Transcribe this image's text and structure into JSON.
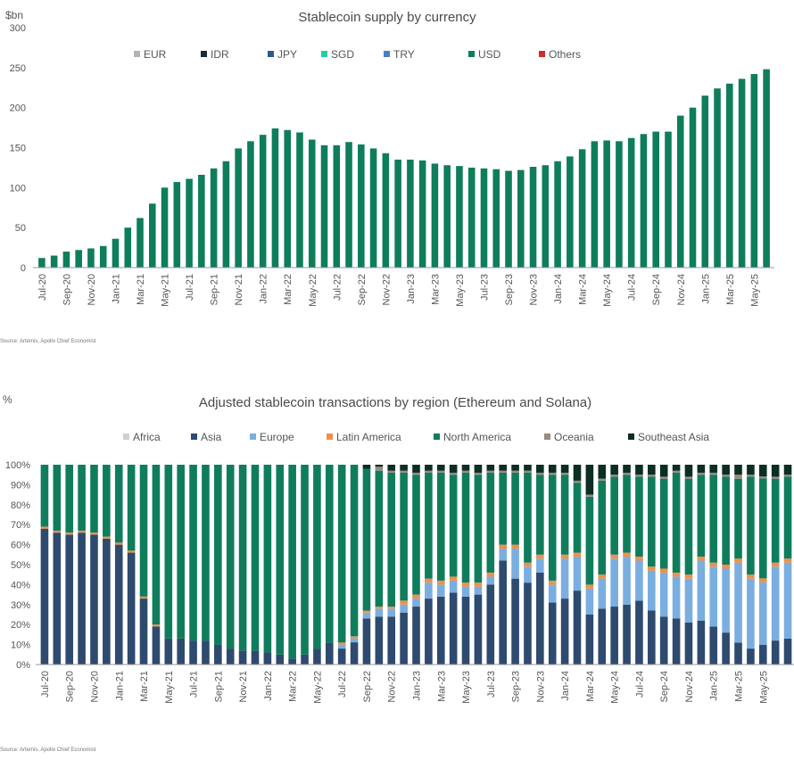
{
  "chart_data": [
    {
      "type": "bar",
      "title": "Stablecoin supply by currency",
      "ylabel": "$bn",
      "xlabel": "",
      "ylim": [
        0,
        300
      ],
      "yticks": [
        "0",
        "50",
        "100",
        "150",
        "200",
        "250",
        "300"
      ],
      "legend": [
        "EUR",
        "IDR",
        "JPY",
        "SGD",
        "TRY",
        "USD",
        "Others"
      ],
      "legend_colors": [
        "#b3b3b3",
        "#1c2b3c",
        "#2c5a8c",
        "#1fcfa8",
        "#4a7fbf",
        "#0e7d5b",
        "#d42a2a"
      ],
      "legend_position": "top",
      "xtick_labels": [
        "Jul-20",
        "Sep-20",
        "Nov-20",
        "Jan-21",
        "Mar-21",
        "May-21",
        "Jul-21",
        "Sep-21",
        "Nov-21",
        "Jan-22",
        "Mar-22",
        "May-22",
        "Jul-22",
        "Sep-22",
        "Nov-22",
        "Jan-23",
        "Mar-23",
        "May-23",
        "Jul-23",
        "Sep-23",
        "Nov-23",
        "Jan-24",
        "Mar-24",
        "May-24",
        "Jul-24",
        "Sep-24",
        "Nov-24",
        "Jan-25",
        "Mar-25",
        "May-25"
      ],
      "values": [
        12,
        15,
        20,
        22,
        24,
        27,
        36,
        50,
        62,
        80,
        100,
        107,
        111,
        116,
        124,
        133,
        149,
        158,
        166,
        174,
        172,
        169,
        160,
        153,
        153,
        157,
        154,
        149,
        143,
        135,
        135,
        134,
        130,
        128,
        127,
        125,
        124,
        123,
        121,
        122,
        126,
        128,
        133,
        139,
        148,
        158,
        159,
        158,
        162,
        167,
        170,
        170,
        190,
        200,
        215,
        224,
        230,
        236,
        242,
        248
      ],
      "source": "Source: Artemis, Apollo Chief Economist"
    },
    {
      "type": "stacked_bar",
      "title": "Adjusted stablecoin transactions by region (Ethereum and Solana)",
      "ylabel": "%",
      "xlabel": "",
      "ylim": [
        0,
        100
      ],
      "yticks": [
        "0%",
        "10%",
        "20%",
        "30%",
        "40%",
        "50%",
        "60%",
        "70%",
        "80%",
        "90%",
        "100%"
      ],
      "legend": [
        "Africa",
        "Asia",
        "Europe",
        "Latin America",
        "North America",
        "Oceania",
        "Southeast Asia"
      ],
      "legend_colors": [
        "#d0d0d0",
        "#2e4a6e",
        "#7aaee0",
        "#f0904a",
        "#0f7d5c",
        "#9a8a80",
        "#0d2e22"
      ],
      "legend_position": "top",
      "xtick_labels": [
        "Jul-20",
        "Sep-20",
        "Nov-20",
        "Jan-21",
        "Mar-21",
        "May-21",
        "Jul-21",
        "Sep-21",
        "Nov-21",
        "Jan-22",
        "Mar-22",
        "May-22",
        "Jul-22",
        "Sep-22",
        "Nov-22",
        "Jan-23",
        "Mar-23",
        "May-23",
        "Jul-23",
        "Sep-23",
        "Nov-23",
        "Jan-24",
        "Mar-24",
        "May-24",
        "Jul-24",
        "Sep-24",
        "Nov-24",
        "Jan-25",
        "Mar-25",
        "May-25"
      ],
      "series": [
        {
          "name": "Asia",
          "values": [
            68,
            66,
            65,
            66,
            65,
            63,
            60,
            56,
            33,
            19,
            13,
            13,
            12,
            12,
            10,
            8,
            7,
            7,
            6,
            5,
            3,
            5,
            8,
            11,
            8,
            11,
            23,
            24,
            24,
            26,
            29,
            33,
            34,
            36,
            34,
            35,
            40,
            52,
            43,
            41,
            46,
            31,
            33,
            37,
            25,
            28,
            29,
            30,
            32,
            27,
            24,
            23,
            21,
            22,
            19,
            16,
            11,
            8,
            10,
            12,
            13
          ],
          "_comment": "Asia values in percent"
        },
        {
          "name": "Europe",
          "values": [
            0,
            0,
            0,
            0,
            0,
            0,
            0,
            0,
            0,
            0,
            0,
            0,
            0,
            0,
            0,
            0,
            0,
            0,
            0,
            0,
            0,
            0,
            0,
            0,
            2,
            2,
            3,
            4,
            4,
            4,
            4,
            8,
            6,
            6,
            5,
            4,
            4,
            6,
            15,
            8,
            7,
            9,
            20,
            17,
            13,
            15,
            24,
            24,
            20,
            20,
            22,
            21,
            22,
            30,
            30,
            32,
            40,
            35,
            32,
            37,
            38
          ]
        },
        {
          "name": "Latin America",
          "values": [
            1,
            1,
            1,
            1,
            1,
            1,
            1,
            1,
            1,
            1,
            0,
            0,
            0,
            0,
            0,
            0,
            0,
            0,
            0,
            0,
            0,
            0,
            0,
            0,
            1,
            1,
            1,
            1,
            1,
            2,
            2,
            2,
            2,
            2,
            2,
            2,
            2,
            2,
            2,
            2,
            2,
            2,
            2,
            2,
            2,
            2,
            2,
            2,
            2,
            2,
            2,
            2,
            2,
            2,
            2,
            2,
            2,
            2,
            2,
            2,
            2
          ]
        },
        {
          "name": "North America",
          "values": [
            31,
            33,
            34,
            33,
            34,
            36,
            39,
            43,
            66,
            80,
            87,
            87,
            88,
            88,
            90,
            92,
            93,
            93,
            94,
            95,
            97,
            95,
            92,
            89,
            89,
            85,
            71,
            68,
            67,
            64,
            60,
            53,
            54,
            51,
            55,
            54,
            50,
            36,
            36,
            45,
            40,
            53,
            40,
            35,
            44,
            47,
            39,
            39,
            40,
            45,
            45,
            50,
            48,
            41,
            44,
            44,
            40,
            49,
            51,
            42,
            41
          ]
        },
        {
          "name": "Oceania",
          "values": [
            0,
            0,
            0,
            0,
            0,
            0,
            0,
            0,
            0,
            0,
            0,
            0,
            0,
            0,
            0,
            0,
            0,
            0,
            0,
            0,
            0,
            0,
            0,
            0,
            0,
            0,
            0,
            2,
            1,
            1,
            1,
            1,
            1,
            1,
            1,
            1,
            1,
            1,
            1,
            1,
            1,
            1,
            1,
            1,
            1,
            1,
            1,
            1,
            1,
            1,
            1,
            1,
            1,
            1,
            1,
            1,
            2,
            1,
            1,
            1,
            1
          ]
        },
        {
          "name": "Southeast Asia",
          "values": [
            0,
            0,
            0,
            0,
            0,
            0,
            0,
            0,
            0,
            0,
            0,
            0,
            0,
            0,
            0,
            0,
            0,
            0,
            0,
            0,
            0,
            0,
            0,
            0,
            0,
            0,
            2,
            1,
            3,
            3,
            4,
            3,
            3,
            4,
            3,
            4,
            3,
            3,
            3,
            3,
            4,
            4,
            4,
            8,
            15,
            7,
            5,
            4,
            5,
            5,
            6,
            3,
            6,
            4,
            4,
            5,
            5,
            5,
            6,
            6,
            5
          ]
        }
      ],
      "source": "Source: Artemis, Apollo Chief Economist"
    }
  ]
}
